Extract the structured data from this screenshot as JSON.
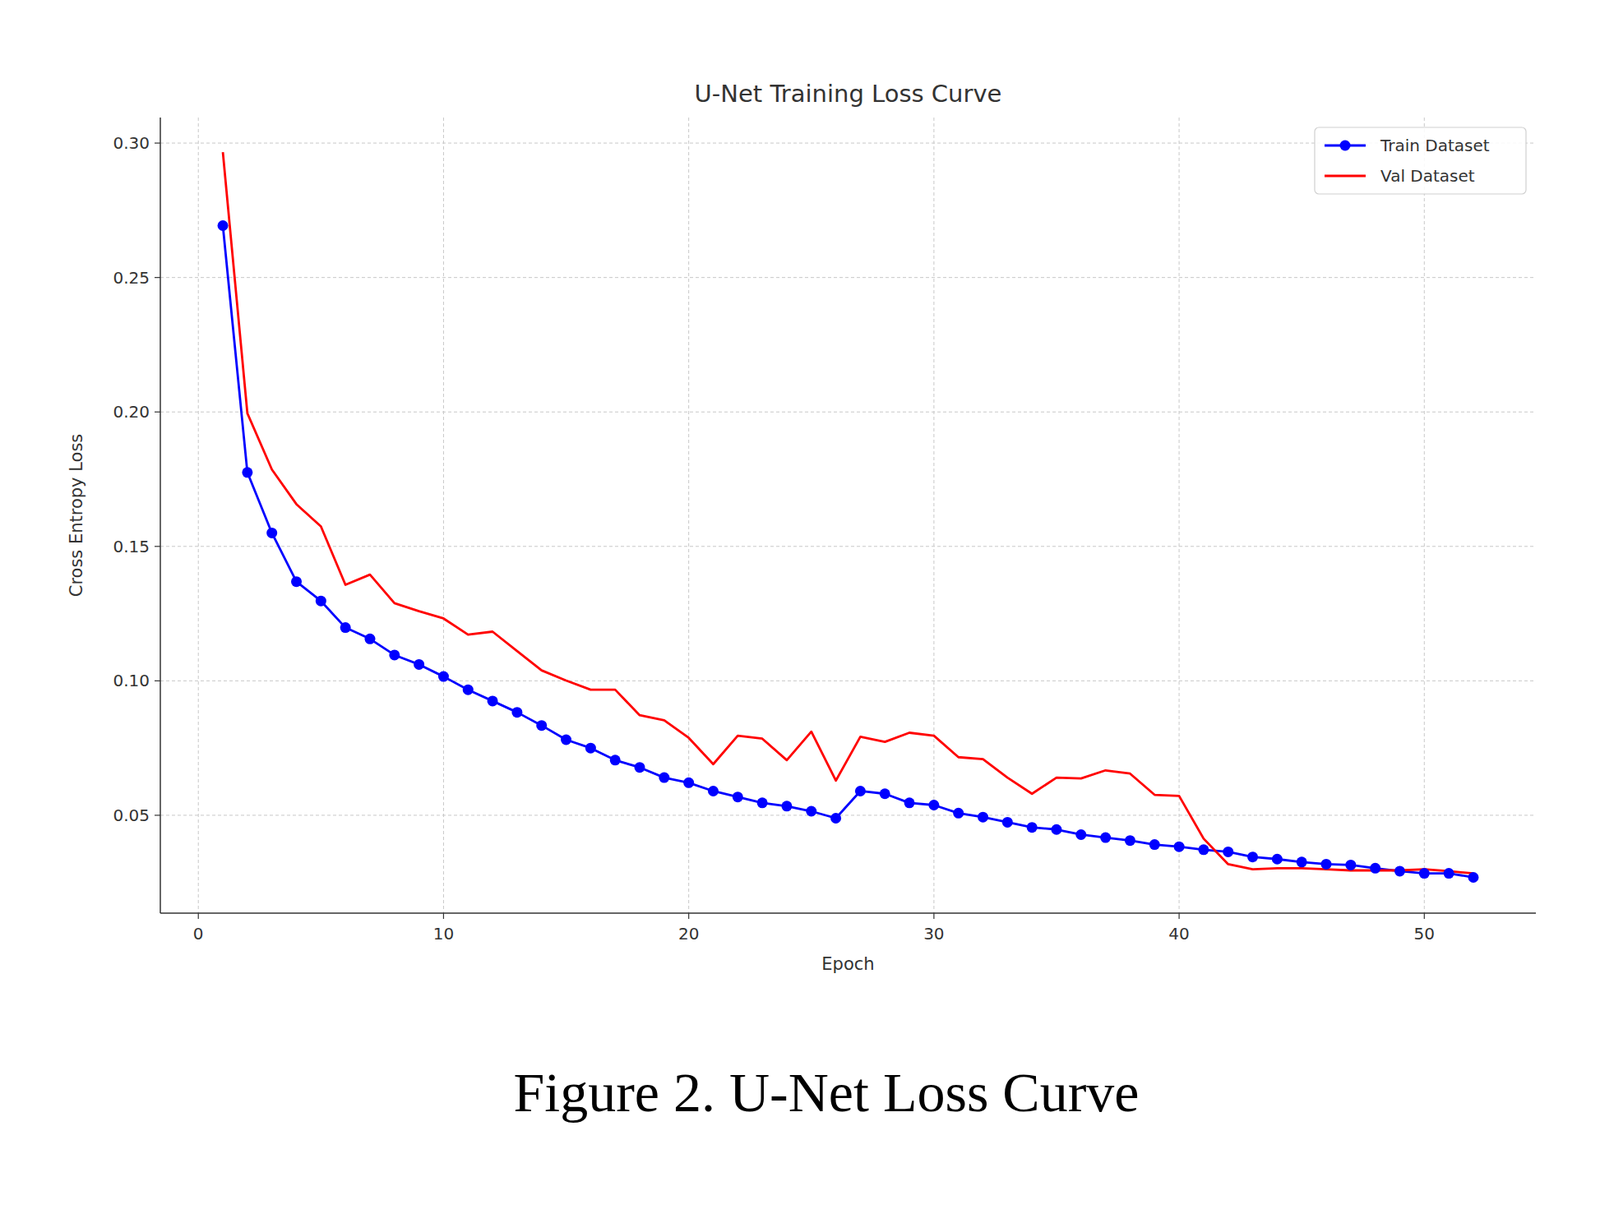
{
  "chart_data": {
    "type": "line",
    "title": "U-Net Training Loss Curve",
    "x_label": "Epoch",
    "y_label": "Cross Entropy Loss",
    "x": [
      1,
      2,
      3,
      4,
      5,
      6,
      7,
      8,
      9,
      10,
      11,
      12,
      13,
      14,
      15,
      16,
      17,
      18,
      19,
      20,
      21,
      22,
      23,
      24,
      25,
      26,
      27,
      28,
      29,
      30,
      31,
      32,
      33,
      34,
      35,
      36,
      37,
      38,
      39,
      40,
      41,
      42,
      43,
      44,
      45,
      46,
      47,
      48,
      49,
      50,
      51,
      52
    ],
    "series": [
      {
        "name": "Train Dataset",
        "color": "#0000ff",
        "marker": "circle",
        "line_style": "solid",
        "values": [
          0.2693,
          0.1775,
          0.155,
          0.1369,
          0.1297,
          0.1198,
          0.1156,
          0.1096,
          0.1061,
          0.1016,
          0.0967,
          0.0925,
          0.0883,
          0.0834,
          0.0781,
          0.075,
          0.0705,
          0.0678,
          0.064,
          0.0621,
          0.059,
          0.0568,
          0.0546,
          0.0534,
          0.0515,
          0.0489,
          0.059,
          0.058,
          0.0546,
          0.0538,
          0.0508,
          0.0493,
          0.0474,
          0.0455,
          0.0447,
          0.0428,
          0.0417,
          0.0406,
          0.0391,
          0.0383,
          0.0372,
          0.0364,
          0.0345,
          0.0337,
          0.0326,
          0.0318,
          0.0315,
          0.0303,
          0.0292,
          0.0284,
          0.0284,
          0.0269
        ]
      },
      {
        "name": "Val Dataset",
        "color": "#ff0000",
        "marker": "none",
        "line_style": "solid",
        "values": [
          0.2966,
          0.1995,
          0.1786,
          0.1657,
          0.1574,
          0.1357,
          0.1395,
          0.1289,
          0.1259,
          0.1232,
          0.1172,
          0.1183,
          0.1111,
          0.1039,
          0.1001,
          0.0967,
          0.0967,
          0.0872,
          0.0853,
          0.0788,
          0.069,
          0.0796,
          0.0785,
          0.0705,
          0.0811,
          0.0629,
          0.0792,
          0.0773,
          0.0807,
          0.0796,
          0.0716,
          0.0709,
          0.064,
          0.058,
          0.064,
          0.0637,
          0.0667,
          0.0655,
          0.0576,
          0.0572,
          0.0413,
          0.0318,
          0.0299,
          0.0303,
          0.0303,
          0.0299,
          0.0295,
          0.0295,
          0.0295,
          0.0299,
          0.0292,
          0.0284
        ]
      }
    ],
    "xlim": [
      -1.55,
      54.55
    ],
    "ylim": [
      0.0136,
      0.3095
    ],
    "xticks": [
      0,
      10,
      20,
      30,
      40,
      50
    ],
    "yticks": [
      0.05,
      {
        "value": 0.1,
        "label": "0.10"
      },
      0.15,
      {
        "value": 0.2,
        "label": "0.20"
      },
      0.25,
      {
        "value": 0.3,
        "label": "0.30"
      }
    ],
    "grid": true,
    "legend": "upper right"
  },
  "caption": "Figure 2. U-Net Loss Curve"
}
